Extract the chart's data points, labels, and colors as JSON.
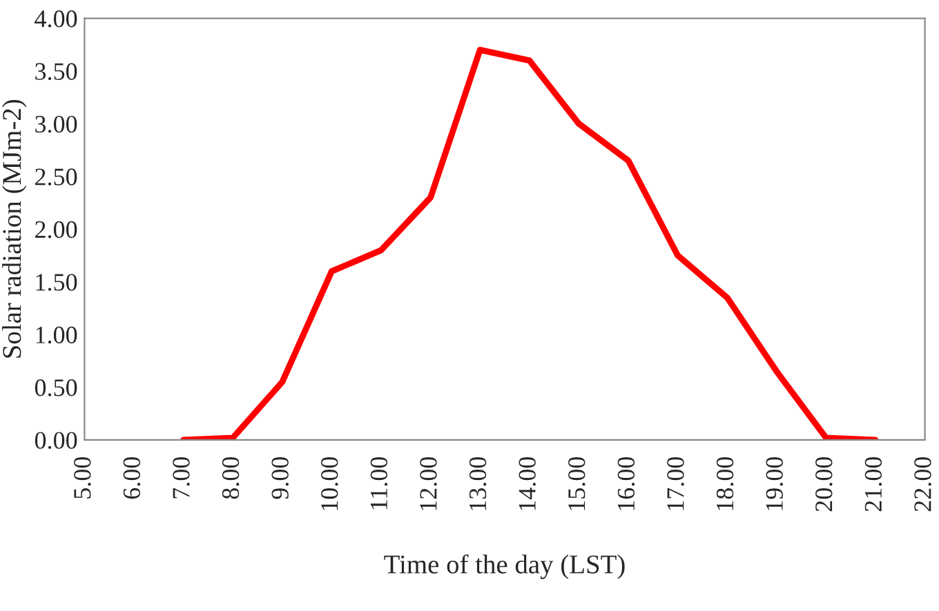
{
  "chart_data": {
    "type": "line",
    "xlabel": "Time of the day (LST)",
    "ylabel": "Solar radiation (MJm-2)",
    "x": [
      7,
      8,
      9,
      10,
      11,
      12,
      13,
      14,
      15,
      16,
      17,
      18,
      19,
      20,
      21
    ],
    "series": [
      {
        "color": "#ff0000",
        "values": [
          0.0,
          0.02,
          0.55,
          1.6,
          1.8,
          2.3,
          3.7,
          3.6,
          3.0,
          2.65,
          1.75,
          1.35,
          0.65,
          0.02,
          0.0
        ]
      }
    ],
    "xlim": [
      5,
      22
    ],
    "xticks": [
      {
        "value": 5,
        "label": "5.00"
      },
      {
        "value": 6,
        "label": "6.00"
      },
      {
        "value": 7,
        "label": "7.00"
      },
      {
        "value": 8,
        "label": "8.00"
      },
      {
        "value": 9,
        "label": "9.00"
      },
      {
        "value": 10,
        "label": "10.00"
      },
      {
        "value": 11,
        "label": "11.00"
      },
      {
        "value": 12,
        "label": "12.00"
      },
      {
        "value": 13,
        "label": "13.00"
      },
      {
        "value": 14,
        "label": "14.00"
      },
      {
        "value": 15,
        "label": "15.00"
      },
      {
        "value": 16,
        "label": "16.00"
      },
      {
        "value": 17,
        "label": "17.00"
      },
      {
        "value": 18,
        "label": "18.00"
      },
      {
        "value": 19,
        "label": "19.00"
      },
      {
        "value": 20,
        "label": "20.00"
      },
      {
        "value": 21,
        "label": "21.00"
      },
      {
        "value": 22,
        "label": "22.00"
      }
    ],
    "ylim": [
      0,
      4
    ],
    "yticks": [
      {
        "value": 0,
        "label": "0.00"
      },
      {
        "value": 0.5,
        "label": "0.50"
      },
      {
        "value": 1,
        "label": "1.00"
      },
      {
        "value": 1.5,
        "label": "1.50"
      },
      {
        "value": 2,
        "label": "2.00"
      },
      {
        "value": 2.5,
        "label": "2.50"
      },
      {
        "value": 3,
        "label": "3.00"
      },
      {
        "value": 3.5,
        "label": "3.50"
      },
      {
        "value": 4,
        "label": "4.00"
      }
    ],
    "grid": false,
    "legend": false,
    "marker": "none",
    "line_style": "solid"
  }
}
